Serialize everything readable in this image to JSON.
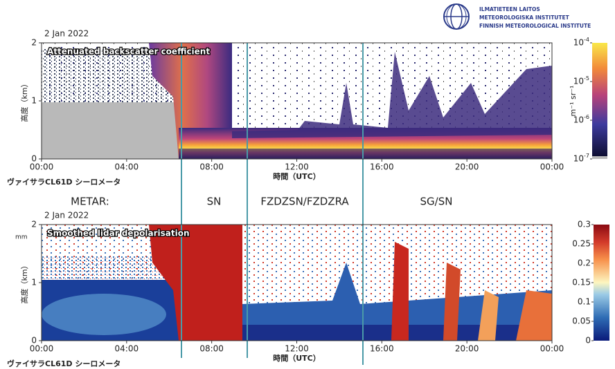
{
  "logo": [
    "ILMATIETEEN LAITOS",
    "METEOROLOGISKA INSTITUTET",
    "FINNISH METEOROLOGICAL INSTITUTE"
  ],
  "metar": {
    "label": "METAR:",
    "periods": [
      "SN",
      "FZDZSN/FZDZRA",
      "SG/SN"
    ]
  },
  "chart_data": [
    {
      "type": "heatmap",
      "date": "2 Jan 2022",
      "title": "Attenuated backscatter coefficient",
      "ylabel": "高度（km）",
      "xlabel": "時間（UTC）",
      "instrument": "ヴァイサラCL61D シーロメータ",
      "xlim": [
        0,
        24
      ],
      "xticks": [
        {
          "value": 0,
          "label": "00:00"
        },
        {
          "value": 4,
          "label": "04:00"
        },
        {
          "value": 8,
          "label": "08:00"
        },
        {
          "value": 12,
          "label": "12:00"
        },
        {
          "value": 16,
          "label": "16:00"
        },
        {
          "value": 20,
          "label": "20:00"
        },
        {
          "value": 24,
          "label": "00:00"
        }
      ],
      "ylim": [
        0,
        2
      ],
      "yticks": [
        0,
        1,
        2
      ],
      "colorbar": {
        "log": true,
        "lim": [
          1e-07,
          0.0001
        ],
        "label": "m⁻¹ sr⁻¹",
        "ticks": [
          {
            "value": 1e-07,
            "label": "10",
            "exponent": "-7"
          },
          {
            "value": 1e-06,
            "label": "10",
            "exponent": "-6"
          },
          {
            "value": 1e-05,
            "label": "10",
            "exponent": "-5"
          },
          {
            "value": 0.0001,
            "label": "10",
            "exponent": "-4"
          }
        ]
      }
    },
    {
      "type": "heatmap",
      "date": "2 Jan 2022",
      "title": "Smoothed lidar depolarisation",
      "note": "mm",
      "ylabel": "高度（km）",
      "xlabel": "時間（UTC）",
      "instrument": "ヴァイサラCL61D シーロメータ",
      "xlim": [
        0,
        24
      ],
      "xticks": [
        {
          "value": 0,
          "label": "00:00"
        },
        {
          "value": 4,
          "label": "04:00"
        },
        {
          "value": 8,
          "label": "08:00"
        },
        {
          "value": 12,
          "label": "12:00"
        },
        {
          "value": 16,
          "label": "16:00"
        },
        {
          "value": 20,
          "label": "20:00"
        },
        {
          "value": 24,
          "label": "00:00"
        }
      ],
      "ylim": [
        0,
        2
      ],
      "yticks": [
        0,
        1,
        2
      ],
      "colorbar": {
        "log": false,
        "lim": [
          0,
          0.3
        ],
        "ticks": [
          0,
          0.05,
          0.1,
          0.15,
          0.2,
          0.25,
          0.3
        ]
      }
    }
  ]
}
